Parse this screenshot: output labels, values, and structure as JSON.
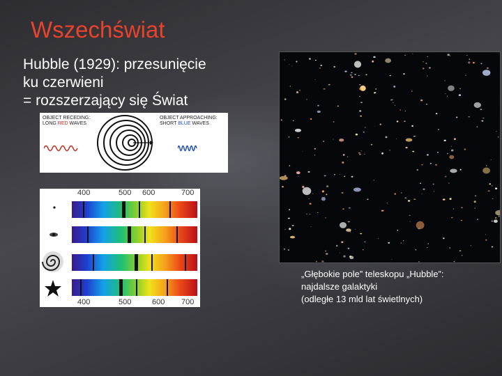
{
  "slide": {
    "title": "Wszechświat",
    "subtitle_lines": [
      "Hubble (1929): przesunięcie",
      "ku czerwieni",
      "= rozszerzający się Świat"
    ]
  },
  "doppler_figure": {
    "left_label_line1": "OBJECT RECEDING:",
    "left_label_line2_a": "LONG ",
    "left_label_line2_red": "RED",
    "left_label_line2_b": " WAVES",
    "right_label_line1": "OBJECT APPROACHING:",
    "right_label_line2_a": "SHORT ",
    "right_label_line2_blue": "BLUE",
    "right_label_line2_b": " WAVES"
  },
  "spectra_figure": {
    "ticks_top": [
      "400",
      "500",
      "600",
      "700"
    ],
    "ticks_bottom": [
      "400",
      "500",
      "600",
      "700"
    ],
    "objects_icons": [
      "dot-icon",
      "small-galaxy-icon",
      "spiral-galaxy-icon",
      "star-icon"
    ]
  },
  "deep_field": {
    "caption_lines": [
      "„Głębokie pole” teleskopu „Hubble”:",
      "najdalsze galaktyki",
      "(odległe 13 mld lat świetlnych)"
    ]
  },
  "colors": {
    "title": "#e8432b",
    "text": "#ffffff",
    "background": "#3b3b40"
  }
}
